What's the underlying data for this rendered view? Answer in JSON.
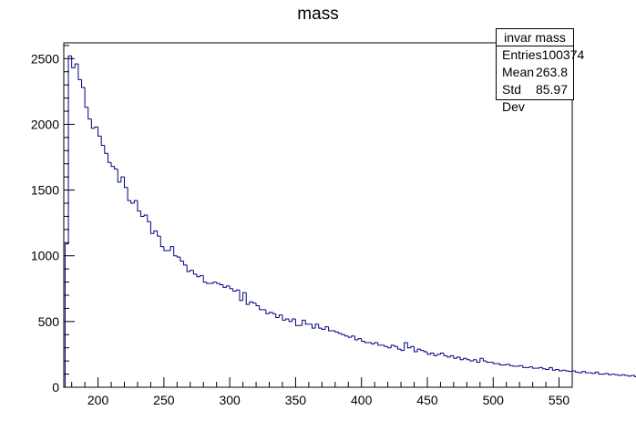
{
  "chart_data": {
    "type": "histogram",
    "title": "mass",
    "xlabel": "",
    "ylabel": "",
    "xlim": [
      174,
      560
    ],
    "ylim": [
      0,
      2620
    ],
    "x_ticks": [
      200,
      250,
      300,
      350,
      400,
      450,
      500,
      550
    ],
    "y_ticks": [
      0,
      500,
      1000,
      1500,
      2000,
      2500
    ],
    "bin_width": 2.5,
    "x_start": 175,
    "values": [
      1090,
      2520,
      2430,
      2460,
      2340,
      2280,
      2130,
      2040,
      1970,
      1980,
      1910,
      1840,
      1780,
      1710,
      1680,
      1660,
      1560,
      1600,
      1520,
      1420,
      1400,
      1420,
      1340,
      1300,
      1310,
      1260,
      1170,
      1190,
      1150,
      1070,
      1040,
      1040,
      1070,
      1000,
      990,
      960,
      930,
      880,
      890,
      860,
      840,
      850,
      800,
      790,
      790,
      800,
      790,
      780,
      760,
      770,
      750,
      730,
      740,
      660,
      720,
      630,
      650,
      640,
      620,
      590,
      590,
      560,
      570,
      560,
      530,
      550,
      510,
      520,
      500,
      520,
      470,
      470,
      510,
      480,
      480,
      450,
      480,
      450,
      440,
      460,
      430,
      430,
      420,
      410,
      400,
      390,
      380,
      390,
      360,
      370,
      350,
      340,
      340,
      330,
      340,
      320,
      320,
      310,
      300,
      320,
      310,
      290,
      280,
      340,
      300,
      310,
      270,
      290,
      280,
      270,
      250,
      260,
      240,
      250,
      260,
      240,
      230,
      240,
      220,
      230,
      210,
      220,
      210,
      200,
      210,
      190,
      220,
      200,
      190,
      190,
      180,
      180,
      170,
      170,
      175,
      165,
      160,
      160,
      165,
      150,
      150,
      155,
      145,
      145,
      150,
      140,
      135,
      150,
      130,
      135,
      125,
      130,
      125,
      120,
      125,
      115,
      110,
      120,
      110,
      110,
      105,
      115,
      100,
      100,
      105,
      95,
      100,
      95,
      90,
      95,
      90,
      85,
      90,
      80,
      85,
      80,
      75,
      80,
      75,
      70
    ],
    "legend": {
      "name": "invar mass",
      "rows": [
        {
          "label": "Entries",
          "value": "100374"
        },
        {
          "label": "Mean",
          "value": "263.8"
        },
        {
          "label": "Std Dev",
          "value": "85.97"
        }
      ]
    },
    "colors": {
      "line": "#000080",
      "frame": "#000000"
    }
  }
}
